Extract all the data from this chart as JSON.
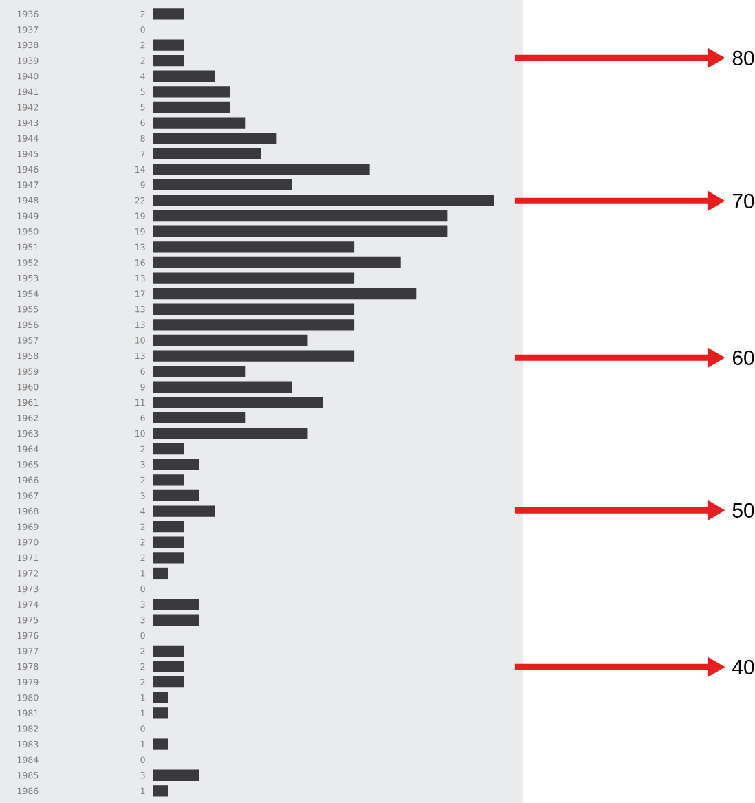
{
  "chart_data": {
    "type": "bar",
    "orientation": "horizontal",
    "color": "#3a3a3c",
    "data_labels": true,
    "categories": [
      "1936",
      "1937",
      "1938",
      "1939",
      "1940",
      "1941",
      "1942",
      "1943",
      "1944",
      "1945",
      "1946",
      "1947",
      "1948",
      "1949",
      "1950",
      "1951",
      "1952",
      "1953",
      "1954",
      "1955",
      "1956",
      "1957",
      "1958",
      "1959",
      "1960",
      "1961",
      "1962",
      "1963",
      "1964",
      "1965",
      "1966",
      "1967",
      "1968",
      "1969",
      "1970",
      "1971",
      "1972",
      "1973",
      "1974",
      "1975",
      "1976",
      "1977",
      "1978",
      "1979",
      "1980",
      "1981",
      "1982",
      "1983",
      "1984",
      "1985",
      "1986"
    ],
    "values": [
      2,
      0,
      2,
      2,
      4,
      5,
      5,
      6,
      8,
      7,
      14,
      9,
      22,
      19,
      19,
      13,
      16,
      13,
      17,
      13,
      13,
      10,
      13,
      6,
      9,
      11,
      6,
      10,
      2,
      3,
      2,
      3,
      4,
      2,
      2,
      2,
      1,
      0,
      3,
      3,
      0,
      2,
      2,
      2,
      1,
      1,
      0,
      1,
      0,
      3,
      1
    ],
    "annotations": [
      "80",
      "70",
      "60",
      "50",
      "40"
    ]
  }
}
